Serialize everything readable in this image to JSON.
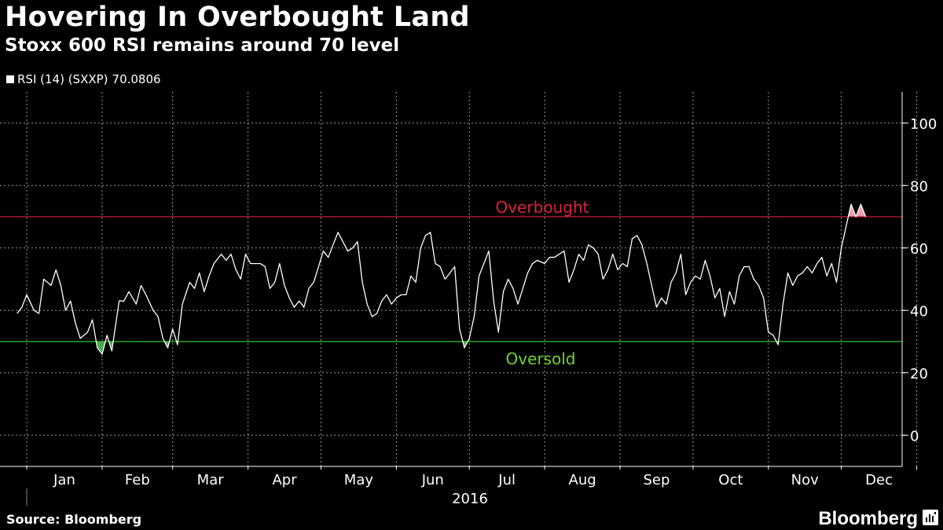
{
  "header": {
    "title": "Hovering In Overbought Land",
    "subtitle": "Stoxx 600 RSI remains around 70 level"
  },
  "legend": {
    "series_name": "RSI (14) (SXXP)",
    "last_value": "70.0806"
  },
  "footer": {
    "source": "Source: Bloomberg",
    "brand": "Bloomberg",
    "brand_icon": "bloomberg-terminal-icon"
  },
  "colors": {
    "background": "#000000",
    "line": "#ffffff",
    "grid": "#9a9a9a",
    "overbought": "#cc1f3b",
    "overbought_label": "#e0203c",
    "oversold": "#38c22e",
    "oversold_label": "#6fd42a",
    "fill_over": "#e8a0a8",
    "fill_under": "#4aa84a"
  },
  "chart_data": {
    "type": "line",
    "title": "Hovering In Overbought Land",
    "subtitle": "Stoxx 600 RSI remains around 70 level",
    "xlabel": "2016",
    "ylabel": "",
    "ylim": [
      -10,
      110
    ],
    "yticks": [
      0,
      20,
      40,
      60,
      80,
      100
    ],
    "month_labels": [
      "Jan",
      "Feb",
      "Mar",
      "Apr",
      "May",
      "Jun",
      "Jul",
      "Aug",
      "Sep",
      "Oct",
      "Nov",
      "Dec"
    ],
    "year_label": "2016",
    "grid": true,
    "legend_position": "top-left",
    "reference_lines": [
      {
        "label": "Overbought",
        "value": 70
      },
      {
        "label": "Oversold",
        "value": 30
      }
    ],
    "series": [
      {
        "name": "RSI (14) (SXXP)",
        "last": 70.0806,
        "points": [
          [
            "2015-12-28",
            39
          ],
          [
            "2015-12-30",
            41
          ],
          [
            "2016-01-01",
            45
          ],
          [
            "2016-01-04",
            40
          ],
          [
            "2016-01-06",
            39
          ],
          [
            "2016-01-08",
            50
          ],
          [
            "2016-01-11",
            48
          ],
          [
            "2016-01-13",
            53
          ],
          [
            "2016-01-15",
            48
          ],
          [
            "2016-01-17",
            40
          ],
          [
            "2016-01-19",
            43
          ],
          [
            "2016-01-21",
            36
          ],
          [
            "2016-01-23",
            31
          ],
          [
            "2016-01-26",
            33
          ],
          [
            "2016-01-28",
            37
          ],
          [
            "2016-01-30",
            28
          ],
          [
            "2016-02-01",
            26
          ],
          [
            "2016-02-03",
            32
          ],
          [
            "2016-02-05",
            27
          ],
          [
            "2016-02-08",
            43
          ],
          [
            "2016-02-10",
            43
          ],
          [
            "2016-02-12",
            46
          ],
          [
            "2016-02-15",
            42
          ],
          [
            "2016-02-17",
            48
          ],
          [
            "2016-02-19",
            45
          ],
          [
            "2016-02-22",
            40
          ],
          [
            "2016-02-24",
            38
          ],
          [
            "2016-02-26",
            31
          ],
          [
            "2016-02-28",
            28
          ],
          [
            "2016-03-01",
            34
          ],
          [
            "2016-03-03",
            29
          ],
          [
            "2016-03-05",
            42
          ],
          [
            "2016-03-08",
            49
          ],
          [
            "2016-03-10",
            47
          ],
          [
            "2016-03-12",
            52
          ],
          [
            "2016-03-14",
            46
          ],
          [
            "2016-03-16",
            51
          ],
          [
            "2016-03-18",
            55
          ],
          [
            "2016-03-21",
            58
          ],
          [
            "2016-03-23",
            56
          ],
          [
            "2016-03-25",
            58
          ],
          [
            "2016-03-27",
            53
          ],
          [
            "2016-03-29",
            50
          ],
          [
            "2016-03-31",
            58
          ],
          [
            "2016-04-02",
            55
          ],
          [
            "2016-04-04",
            55
          ],
          [
            "2016-04-06",
            55
          ],
          [
            "2016-04-08",
            54
          ],
          [
            "2016-04-10",
            47
          ],
          [
            "2016-04-12",
            49
          ],
          [
            "2016-04-14",
            55
          ],
          [
            "2016-04-16",
            48
          ],
          [
            "2016-04-18",
            44
          ],
          [
            "2016-04-20",
            41
          ],
          [
            "2016-04-22",
            43
          ],
          [
            "2016-04-24",
            41
          ],
          [
            "2016-04-26",
            47
          ],
          [
            "2016-04-28",
            49
          ],
          [
            "2016-04-30",
            54
          ],
          [
            "2016-05-02",
            59
          ],
          [
            "2016-05-04",
            57
          ],
          [
            "2016-05-06",
            61
          ],
          [
            "2016-05-08",
            65
          ],
          [
            "2016-05-10",
            62
          ],
          [
            "2016-05-12",
            59
          ],
          [
            "2016-05-14",
            60
          ],
          [
            "2016-05-16",
            62
          ],
          [
            "2016-05-18",
            49
          ],
          [
            "2016-05-20",
            42
          ],
          [
            "2016-05-22",
            38
          ],
          [
            "2016-05-24",
            39
          ],
          [
            "2016-05-26",
            43
          ],
          [
            "2016-05-28",
            45
          ],
          [
            "2016-05-30",
            42
          ],
          [
            "2016-06-01",
            44
          ],
          [
            "2016-06-03",
            45
          ],
          [
            "2016-06-05",
            45
          ],
          [
            "2016-06-07",
            51
          ],
          [
            "2016-06-09",
            49
          ],
          [
            "2016-06-11",
            60
          ],
          [
            "2016-06-13",
            64
          ],
          [
            "2016-06-15",
            65
          ],
          [
            "2016-06-17",
            55
          ],
          [
            "2016-06-19",
            54
          ],
          [
            "2016-06-21",
            50
          ],
          [
            "2016-06-23",
            52
          ],
          [
            "2016-06-25",
            54
          ],
          [
            "2016-06-27",
            34
          ],
          [
            "2016-06-29",
            28
          ],
          [
            "2016-07-01",
            31
          ],
          [
            "2016-07-03",
            38
          ],
          [
            "2016-07-05",
            51
          ],
          [
            "2016-07-07",
            55
          ],
          [
            "2016-07-09",
            59
          ],
          [
            "2016-07-11",
            43
          ],
          [
            "2016-07-13",
            33
          ],
          [
            "2016-07-15",
            46
          ],
          [
            "2016-07-17",
            50
          ],
          [
            "2016-07-19",
            47
          ],
          [
            "2016-07-21",
            42
          ],
          [
            "2016-07-23",
            47
          ],
          [
            "2016-07-25",
            52
          ],
          [
            "2016-07-27",
            55
          ],
          [
            "2016-07-29",
            56
          ],
          [
            "2016-08-01",
            55
          ],
          [
            "2016-08-03",
            57
          ],
          [
            "2016-08-05",
            57
          ],
          [
            "2016-08-07",
            58
          ],
          [
            "2016-08-09",
            59
          ],
          [
            "2016-08-11",
            49
          ],
          [
            "2016-08-13",
            53
          ],
          [
            "2016-08-15",
            58
          ],
          [
            "2016-08-17",
            56
          ],
          [
            "2016-08-19",
            61
          ],
          [
            "2016-08-21",
            60
          ],
          [
            "2016-08-23",
            58
          ],
          [
            "2016-08-25",
            50
          ],
          [
            "2016-08-27",
            53
          ],
          [
            "2016-08-29",
            58
          ],
          [
            "2016-08-31",
            53
          ],
          [
            "2016-09-02",
            55
          ],
          [
            "2016-09-04",
            54
          ],
          [
            "2016-09-06",
            63
          ],
          [
            "2016-09-08",
            64
          ],
          [
            "2016-09-10",
            61
          ],
          [
            "2016-09-12",
            55
          ],
          [
            "2016-09-14",
            48
          ],
          [
            "2016-09-16",
            41
          ],
          [
            "2016-09-18",
            44
          ],
          [
            "2016-09-20",
            42
          ],
          [
            "2016-09-22",
            49
          ],
          [
            "2016-09-24",
            52
          ],
          [
            "2016-09-26",
            58
          ],
          [
            "2016-09-28",
            45
          ],
          [
            "2016-09-30",
            49
          ],
          [
            "2016-10-02",
            51
          ],
          [
            "2016-10-04",
            50
          ],
          [
            "2016-10-06",
            56
          ],
          [
            "2016-10-08",
            51
          ],
          [
            "2016-10-10",
            44
          ],
          [
            "2016-10-12",
            47
          ],
          [
            "2016-10-14",
            38
          ],
          [
            "2016-10-16",
            46
          ],
          [
            "2016-10-18",
            42
          ],
          [
            "2016-10-20",
            51
          ],
          [
            "2016-10-22",
            54
          ],
          [
            "2016-10-24",
            54
          ],
          [
            "2016-10-26",
            50
          ],
          [
            "2016-10-28",
            48
          ],
          [
            "2016-10-30",
            44
          ],
          [
            "2016-11-01",
            33
          ],
          [
            "2016-11-03",
            32
          ],
          [
            "2016-11-05",
            29
          ],
          [
            "2016-11-07",
            42
          ],
          [
            "2016-11-09",
            52
          ],
          [
            "2016-11-11",
            48
          ],
          [
            "2016-11-13",
            51
          ],
          [
            "2016-11-15",
            52
          ],
          [
            "2016-11-17",
            54
          ],
          [
            "2016-11-19",
            52
          ],
          [
            "2016-11-21",
            55
          ],
          [
            "2016-11-23",
            57
          ],
          [
            "2016-11-25",
            51
          ],
          [
            "2016-11-27",
            55
          ],
          [
            "2016-11-29",
            49
          ],
          [
            "2016-12-01",
            60
          ],
          [
            "2016-12-03",
            67
          ],
          [
            "2016-12-05",
            74
          ],
          [
            "2016-12-07",
            70
          ],
          [
            "2016-12-09",
            74
          ],
          [
            "2016-12-11",
            70
          ]
        ]
      }
    ]
  }
}
